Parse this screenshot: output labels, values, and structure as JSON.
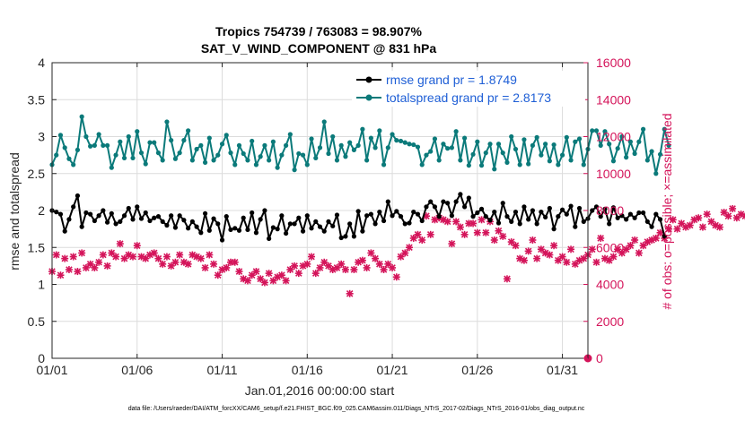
{
  "chart_data": {
    "type": "line",
    "title": "Tropics 754739 / 763083 = 98.907%",
    "subtitle": "SAT_V_WIND_COMPONENT @ 831 hPa",
    "xlabel": "Jan.01,2016 00:00:00 start",
    "ylabel": "rmse and totalspread",
    "ylabel_right": "# of obs: o=possible; ×=assimilated",
    "xlim": [
      1,
      32.5
    ],
    "ylim": [
      0,
      4
    ],
    "ylim_right": [
      0,
      16000
    ],
    "x_ticks": [
      1,
      6,
      11,
      16,
      21,
      26,
      31
    ],
    "x_tick_labels": [
      "01/01",
      "01/06",
      "01/11",
      "01/16",
      "01/21",
      "01/26",
      "01/31"
    ],
    "y_ticks": [
      0,
      0.5,
      1,
      1.5,
      2,
      2.5,
      3,
      3.5,
      4
    ],
    "y_tick_labels": [
      "0",
      "0.5",
      "1",
      "1.5",
      "2",
      "2.5",
      "3",
      "3.5",
      "4"
    ],
    "y_ticks_right": [
      0,
      2000,
      4000,
      6000,
      8000,
      10000,
      12000,
      14000,
      16000
    ],
    "y_tick_labels_right": [
      "0",
      "2000",
      "4000",
      "6000",
      "8000",
      "10000",
      "12000",
      "14000",
      "16000"
    ],
    "grid": true,
    "legend_position": "top-right",
    "x_start": 1,
    "x_step": 0.25,
    "series": [
      {
        "name": "rmse grand pr = 1.8749",
        "color": "#000000",
        "marker": "dot",
        "axis": "left",
        "values": [
          2.0,
          1.98,
          1.95,
          1.72,
          1.88,
          2.05,
          2.2,
          1.78,
          1.97,
          1.95,
          1.86,
          1.93,
          2.0,
          1.84,
          1.96,
          1.82,
          1.85,
          1.93,
          2.03,
          1.88,
          2.05,
          1.89,
          1.97,
          1.86,
          1.9,
          1.92,
          1.85,
          1.8,
          1.93,
          1.77,
          1.93,
          1.87,
          1.76,
          1.85,
          1.78,
          1.7,
          1.96,
          1.73,
          1.89,
          1.82,
          1.6,
          1.92,
          1.74,
          1.76,
          1.73,
          1.9,
          1.74,
          1.97,
          1.7,
          1.88,
          2.0,
          1.62,
          1.77,
          1.75,
          1.93,
          1.69,
          1.82,
          1.82,
          1.9,
          1.72,
          1.93,
          1.76,
          1.85,
          1.78,
          1.72,
          1.85,
          1.79,
          1.94,
          1.63,
          1.65,
          1.82,
          1.65,
          1.99,
          1.72,
          1.93,
          1.95,
          1.82,
          1.98,
          1.86,
          2.12,
          1.93,
          1.99,
          1.92,
          1.82,
          1.83,
          1.98,
          1.95,
          1.86,
          2.05,
          2.12,
          2.05,
          1.92,
          2.12,
          2.1,
          1.93,
          2.12,
          2.22,
          2.05,
          2.17,
          1.92,
          1.97,
          2.02,
          1.92,
          1.87,
          1.98,
          1.83,
          2.1,
          1.92,
          1.85,
          1.98,
          1.82,
          2.05,
          1.88,
          2.0,
          1.82,
          1.98,
          1.91,
          2.03,
          1.75,
          1.92,
          2.01,
          1.95,
          2.06,
          1.78,
          2.03,
          1.85,
          1.89,
          2.0,
          2.05,
          1.92,
          2.02,
          1.82,
          2.04,
          1.9,
          1.93,
          1.88,
          1.95,
          1.9,
          1.97,
          1.97,
          1.85,
          1.78,
          1.95,
          1.88,
          1.65
        ]
      },
      {
        "name": "totalspread grand pr = 2.8173",
        "color": "#0b7a7a",
        "marker": "dot",
        "axis": "left",
        "values": [
          2.62,
          2.75,
          3.02,
          2.85,
          2.7,
          2.62,
          2.82,
          3.27,
          3.0,
          2.87,
          2.88,
          3.03,
          2.88,
          2.88,
          2.58,
          2.75,
          2.93,
          2.71,
          3.0,
          2.71,
          3.07,
          2.78,
          2.63,
          2.92,
          2.92,
          2.78,
          2.68,
          3.2,
          2.95,
          2.7,
          2.78,
          2.95,
          3.08,
          2.68,
          2.83,
          2.88,
          2.65,
          2.98,
          2.68,
          2.75,
          2.9,
          3.02,
          2.78,
          2.62,
          2.88,
          2.77,
          2.68,
          2.94,
          2.62,
          2.73,
          2.88,
          2.68,
          2.93,
          2.58,
          2.75,
          2.88,
          3.03,
          2.55,
          2.77,
          2.75,
          2.62,
          2.97,
          2.71,
          2.85,
          3.2,
          2.77,
          3.0,
          2.68,
          2.88,
          2.73,
          2.92,
          2.82,
          2.88,
          3.1,
          2.68,
          2.98,
          2.85,
          3.08,
          2.62,
          2.85,
          3.03,
          2.95,
          2.94,
          2.92,
          2.9,
          2.89,
          2.86,
          2.62,
          2.75,
          2.8,
          2.97,
          2.68,
          2.9,
          2.84,
          2.85,
          3.07,
          2.68,
          2.98,
          2.61,
          2.76,
          2.93,
          2.61,
          2.78,
          2.9,
          2.56,
          2.9,
          2.78,
          2.65,
          3.0,
          2.83,
          2.62,
          2.96,
          2.63,
          2.88,
          2.99,
          2.75,
          2.9,
          2.67,
          2.89,
          2.62,
          2.75,
          2.99,
          2.68,
          2.93,
          2.97,
          2.62,
          2.83,
          3.08,
          3.08,
          2.88,
          3.07,
          2.9,
          2.67,
          2.84,
          3.0,
          2.72,
          2.93,
          2.77,
          2.93,
          3.1,
          2.68,
          2.8,
          2.5,
          2.76,
          3.1,
          2.88
        ]
      },
      {
        "name": "assimilated",
        "color": "#d4145a",
        "marker": "x",
        "axis": "right",
        "values": [
          4700,
          5600,
          4500,
          5400,
          4800,
          5500,
          4700,
          5700,
          4900,
          5100,
          4900,
          5200,
          5600,
          5000,
          5700,
          5500,
          6200,
          5400,
          5600,
          5500,
          6100,
          5500,
          5400,
          5600,
          5700,
          5400,
          5100,
          5500,
          5000,
          5200,
          5600,
          5200,
          5100,
          5600,
          5500,
          5400,
          4900,
          5600,
          5100,
          4500,
          4800,
          4900,
          5200,
          5200,
          4700,
          4300,
          4200,
          4500,
          4700,
          4300,
          4100,
          4600,
          4200,
          4400,
          4500,
          4200,
          4800,
          5000,
          4600,
          5000,
          5100,
          5500,
          4600,
          4900,
          5200,
          5000,
          4800,
          4900,
          5100,
          4800,
          3500,
          4800,
          5200,
          5300,
          4900,
          5700,
          5400,
          5100,
          4800,
          5100,
          4900,
          4400,
          5500,
          5700,
          6000,
          6500,
          6700,
          6400,
          7700,
          6700,
          7500,
          7600,
          7500,
          7400,
          6200,
          7400,
          7100,
          6700,
          7300,
          7300,
          6800,
          7500,
          6800,
          7400,
          6400,
          6900,
          6600,
          4300,
          6300,
          6100,
          5400,
          5300,
          5800,
          6400,
          5400,
          5900,
          5700,
          5600,
          6100,
          5300,
          5500,
          5200,
          5900,
          5100,
          5300,
          5400,
          5600,
          5900,
          5200,
          6500,
          5400,
          5300,
          5500,
          5900,
          5700,
          5900,
          6100,
          6400,
          5700,
          6100,
          6300,
          6400,
          6500,
          6800,
          6500,
          7000,
          7500,
          7000,
          7300,
          7100,
          7200,
          7500,
          7600,
          7100,
          7800,
          7400,
          7200,
          7100,
          7900,
          7700,
          8100,
          7600,
          7800,
          7700,
          7300,
          7000,
          7700,
          7300,
          7600,
          7900,
          7200,
          7400,
          6700,
          6900,
          7200,
          7000,
          7500,
          6800,
          7800,
          7700,
          7100,
          8000,
          7700,
          7400,
          7600,
          7900,
          8000,
          7700,
          7300,
          7700,
          7300,
          7600,
          7500,
          8200,
          7900,
          7400,
          8300,
          7300,
          8300,
          7400,
          8300,
          7400,
          7100,
          8700,
          7800,
          7500,
          7900,
          6800,
          7200,
          8000,
          6700,
          7100,
          8100,
          7400,
          8200,
          7200,
          6800,
          7800,
          7300,
          6700,
          7900,
          7100,
          6600,
          8200,
          7300,
          7600,
          6800,
          7000,
          7800,
          7200,
          7500,
          6900,
          7800,
          7100,
          8000,
          7400,
          7200,
          8300,
          7900,
          8800,
          8500,
          7600,
          8200,
          8400
        ]
      },
      {
        "name": "possible",
        "color": "#d4145a",
        "marker": "o",
        "axis": "right",
        "x_values": [
          32.5
        ],
        "values": [
          0
        ]
      }
    ],
    "footnote": "data file: /Users/raeder/DAI/ATM_forcXX/CAM6_setup/f.e21.FHIST_BGC.f09_025.CAM6assim.011/Diags_NTrS_2017-02/Diags_NTrS_2016-01/obs_diag_output.nc"
  }
}
